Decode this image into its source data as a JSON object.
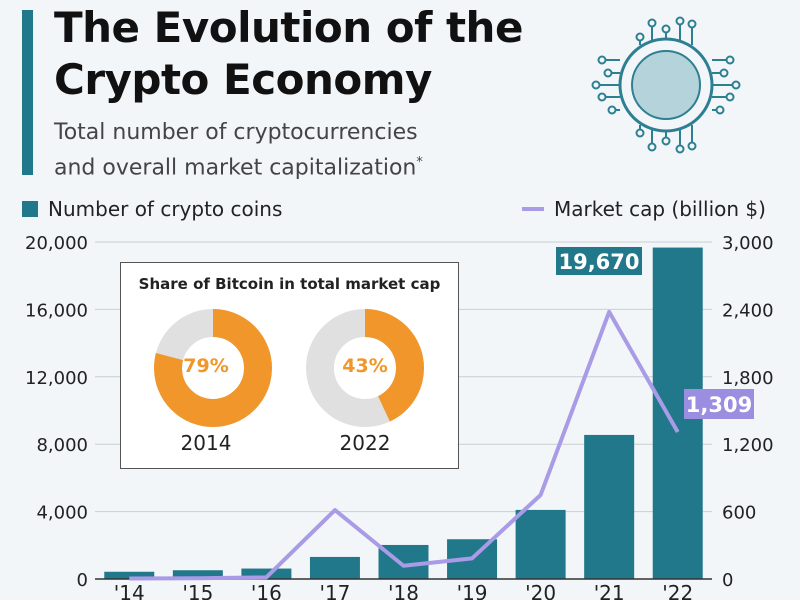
{
  "header": {
    "title_line1": "The Evolution of the",
    "title_line2": "Crypto Economy",
    "subtitle_line1": "Total number of cryptocurrencies",
    "subtitle_line2": "and overall market capitalization",
    "footnote_mark": "*"
  },
  "colors": {
    "bar": "#21788a",
    "line": "#a99be6",
    "donut": "#f0962a",
    "donut_rest": "#e0e0e0"
  },
  "chart_data": {
    "type": "bar+line",
    "categories": [
      "'14",
      "'15",
      "'16",
      "'17",
      "'18",
      "'19",
      "'20",
      "'21",
      "'22"
    ],
    "series": [
      {
        "name": "Number of crypto coins",
        "type": "bar",
        "axis": "left",
        "values": [
          430,
          520,
          620,
          1310,
          2020,
          2360,
          4100,
          8550,
          19670
        ]
      },
      {
        "name": "Market cap (billion $)",
        "type": "line",
        "axis": "right",
        "values": [
          5,
          7,
          15,
          614,
          118,
          184,
          748,
          2378,
          1309
        ]
      }
    ],
    "left_axis": {
      "ylim": [
        0,
        20000
      ],
      "ticks": [
        "0",
        "4,000",
        "8,000",
        "12,000",
        "16,000",
        "20,000"
      ]
    },
    "right_axis": {
      "ylim": [
        0,
        3000
      ],
      "ticks": [
        "0",
        "600",
        "1,200",
        "1,800",
        "2,400",
        "3,000"
      ]
    },
    "annotations": {
      "bar_label": "19,670",
      "line_label": "1,309"
    },
    "legend_position": "top"
  },
  "inset": {
    "title": "Share of Bitcoin in total market cap",
    "donuts": [
      {
        "year": "2014",
        "label": "79%",
        "value": 79
      },
      {
        "year": "2022",
        "label": "43%",
        "value": 43
      }
    ]
  }
}
